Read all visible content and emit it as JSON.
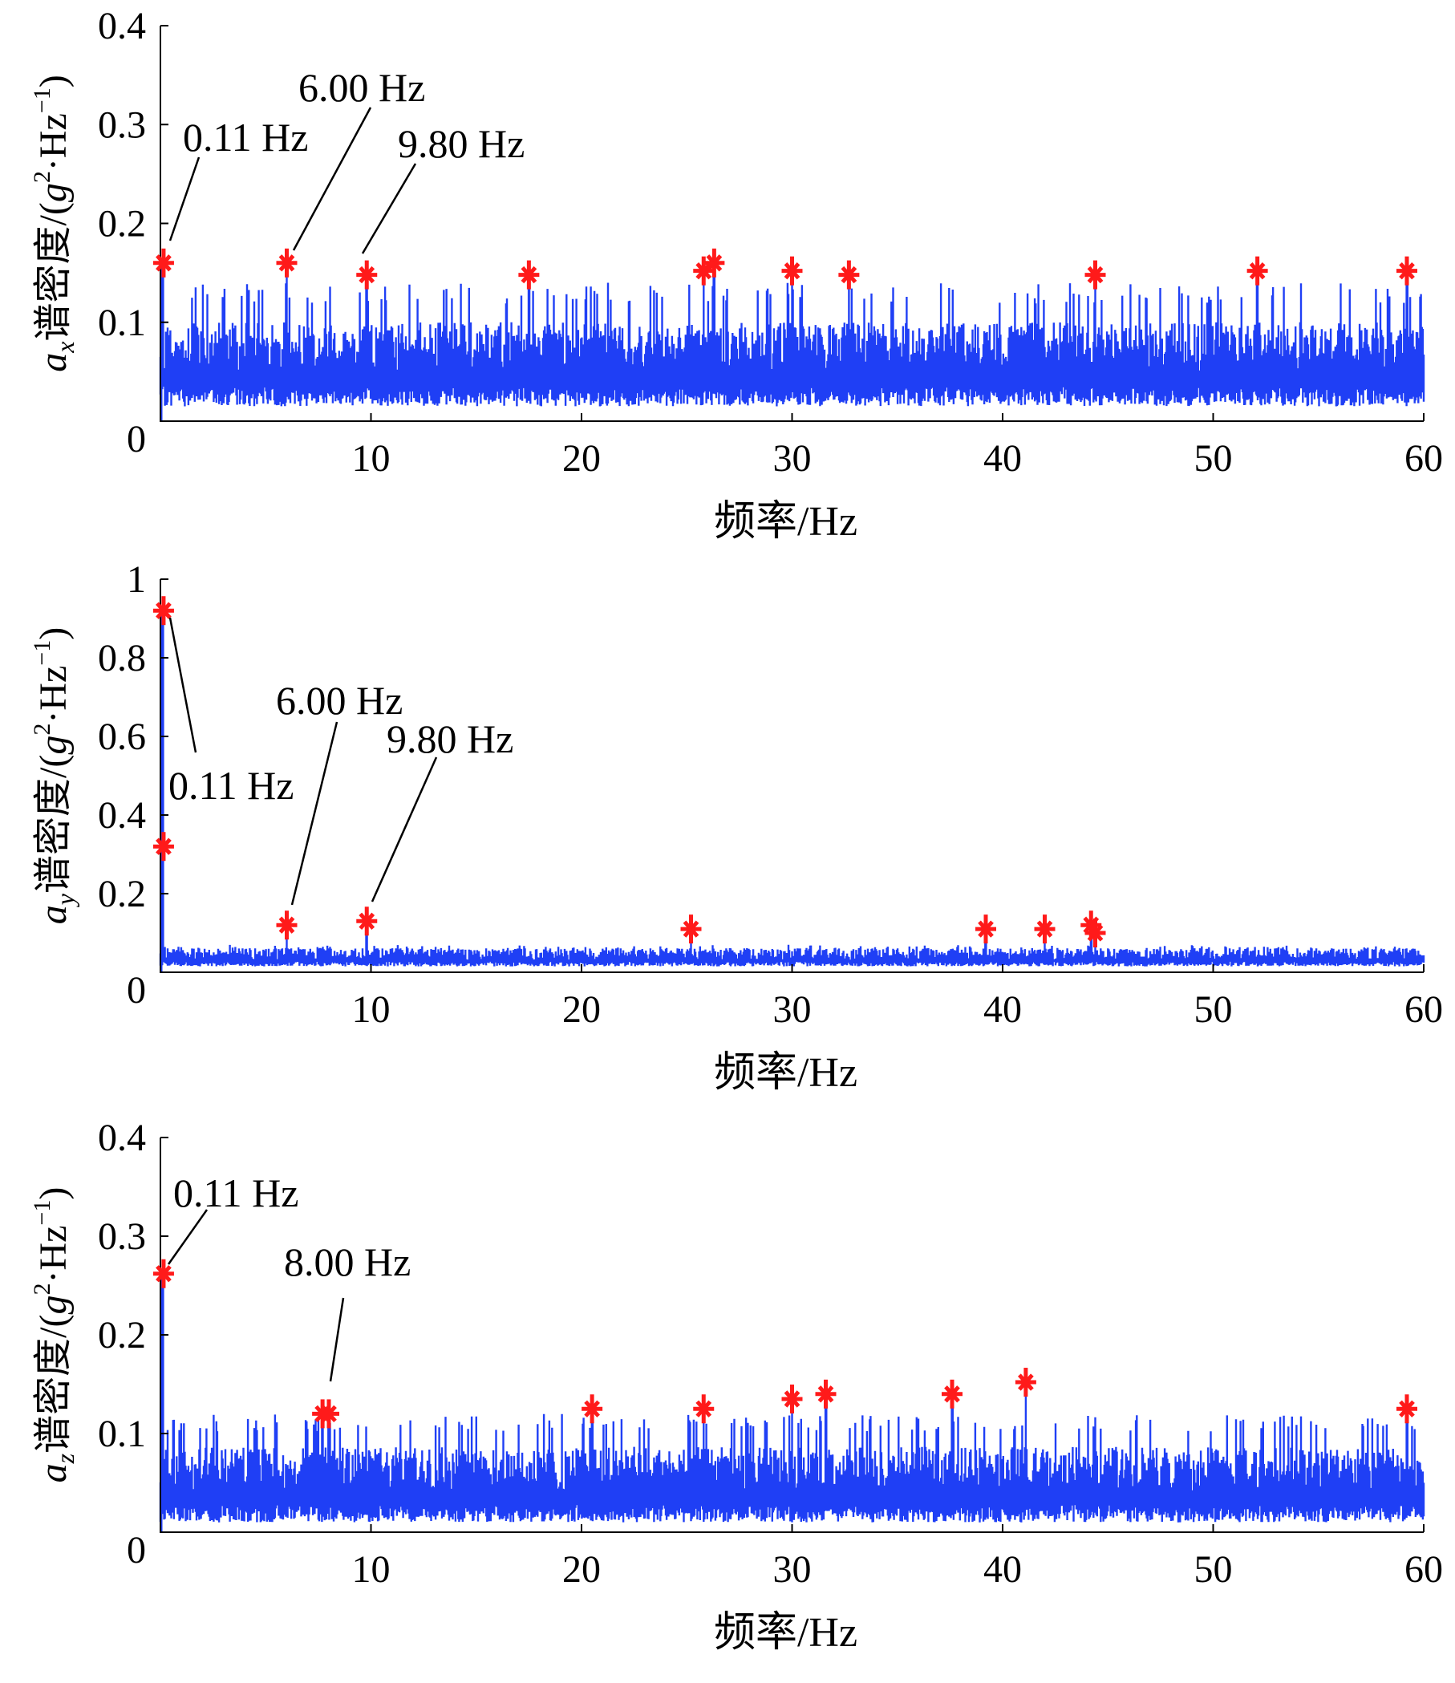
{
  "chart_data": [
    {
      "type": "line",
      "title": "",
      "xlabel": "频率/Hz",
      "ylabel_var": "a",
      "ylabel_sub": "x",
      "ylabel_text": "谱密度/(",
      "ylabel_g": "g",
      "ylabel_sup2": "2",
      "ylabel_unit": "·Hz",
      "ylabel_supm1": "−1",
      "ylabel_close": ")",
      "xlim": [
        0,
        60
      ],
      "ylim": [
        0,
        0.4
      ],
      "xticks": [
        10,
        20,
        30,
        40,
        50,
        60
      ],
      "yticks": [
        0,
        0.1,
        0.2,
        0.3,
        0.4
      ],
      "line_color": "#1f3ff5",
      "marker_color": "#ff1a1a",
      "noise": {
        "floor": 0.015,
        "mean": 0.065,
        "spread": 0.05,
        "max": 0.14
      },
      "peaks": [
        {
          "x": 0.11,
          "y": 0.16
        },
        {
          "x": 6.0,
          "y": 0.16
        },
        {
          "x": 9.8,
          "y": 0.148
        },
        {
          "x": 17.5,
          "y": 0.148
        },
        {
          "x": 25.8,
          "y": 0.152
        },
        {
          "x": 26.3,
          "y": 0.16
        },
        {
          "x": 30.0,
          "y": 0.152
        },
        {
          "x": 32.7,
          "y": 0.148
        },
        {
          "x": 44.4,
          "y": 0.148
        },
        {
          "x": 52.1,
          "y": 0.152
        },
        {
          "x": 59.2,
          "y": 0.152
        }
      ],
      "annotations": [
        {
          "text": "0.11 Hz",
          "x": 0.11,
          "y": 0.16
        },
        {
          "text": "6.00 Hz",
          "x": 6.0,
          "y": 0.16
        },
        {
          "text": "9.80 Hz",
          "x": 9.8,
          "y": 0.148
        }
      ]
    },
    {
      "type": "line",
      "title": "",
      "xlabel": "频率/Hz",
      "ylabel_var": "a",
      "ylabel_sub": "y",
      "ylabel_text": "谱密度/(",
      "ylabel_g": "g",
      "ylabel_sup2": "2",
      "ylabel_unit": "·Hz",
      "ylabel_supm1": "−1",
      "ylabel_close": ")",
      "xlim": [
        0,
        60
      ],
      "ylim": [
        0,
        1
      ],
      "xticks": [
        10,
        20,
        30,
        40,
        50,
        60
      ],
      "yticks": [
        0,
        0.2,
        0.4,
        0.6,
        0.8,
        1
      ],
      "line_color": "#1f3ff5",
      "marker_color": "#ff1a1a",
      "noise": {
        "floor": 0.015,
        "mean": 0.04,
        "spread": 0.03,
        "max": 0.07
      },
      "peaks": [
        {
          "x": 0.11,
          "y": 0.92
        },
        {
          "x": 0.11,
          "y": 0.32
        },
        {
          "x": 6.0,
          "y": 0.12
        },
        {
          "x": 9.8,
          "y": 0.13
        },
        {
          "x": 25.2,
          "y": 0.11
        },
        {
          "x": 39.2,
          "y": 0.11
        },
        {
          "x": 42.0,
          "y": 0.11
        },
        {
          "x": 44.2,
          "y": 0.12
        },
        {
          "x": 44.4,
          "y": 0.1
        }
      ],
      "annotations": [
        {
          "text": "0.11 Hz",
          "x": 0.11,
          "y": 0.92
        },
        {
          "text": "6.00 Hz",
          "x": 6.0,
          "y": 0.12
        },
        {
          "text": "9.80 Hz",
          "x": 9.8,
          "y": 0.13
        }
      ]
    },
    {
      "type": "line",
      "title": "",
      "xlabel": "频率/Hz",
      "ylabel_var": "a",
      "ylabel_sub": "z",
      "ylabel_text": "谱密度/(",
      "ylabel_g": "g",
      "ylabel_sup2": "2",
      "ylabel_unit": "·Hz",
      "ylabel_supm1": "−1",
      "ylabel_close": ")",
      "xlim": [
        0,
        60
      ],
      "ylim": [
        0,
        0.4
      ],
      "xticks": [
        10,
        20,
        30,
        40,
        50,
        60
      ],
      "yticks": [
        0,
        0.1,
        0.2,
        0.3,
        0.4
      ],
      "line_color": "#1f3ff5",
      "marker_color": "#ff1a1a",
      "noise": {
        "floor": 0.01,
        "mean": 0.055,
        "spread": 0.045,
        "max": 0.12
      },
      "peaks": [
        {
          "x": 0.11,
          "y": 0.262
        },
        {
          "x": 7.7,
          "y": 0.12
        },
        {
          "x": 8.0,
          "y": 0.12
        },
        {
          "x": 20.5,
          "y": 0.125
        },
        {
          "x": 25.8,
          "y": 0.125
        },
        {
          "x": 30.0,
          "y": 0.135
        },
        {
          "x": 31.6,
          "y": 0.14
        },
        {
          "x": 37.6,
          "y": 0.14
        },
        {
          "x": 41.1,
          "y": 0.152
        },
        {
          "x": 59.2,
          "y": 0.125
        }
      ],
      "annotations": [
        {
          "text": "0.11 Hz",
          "x": 0.11,
          "y": 0.262
        },
        {
          "text": "8.00 Hz",
          "x": 8.0,
          "y": 0.12
        }
      ]
    }
  ]
}
